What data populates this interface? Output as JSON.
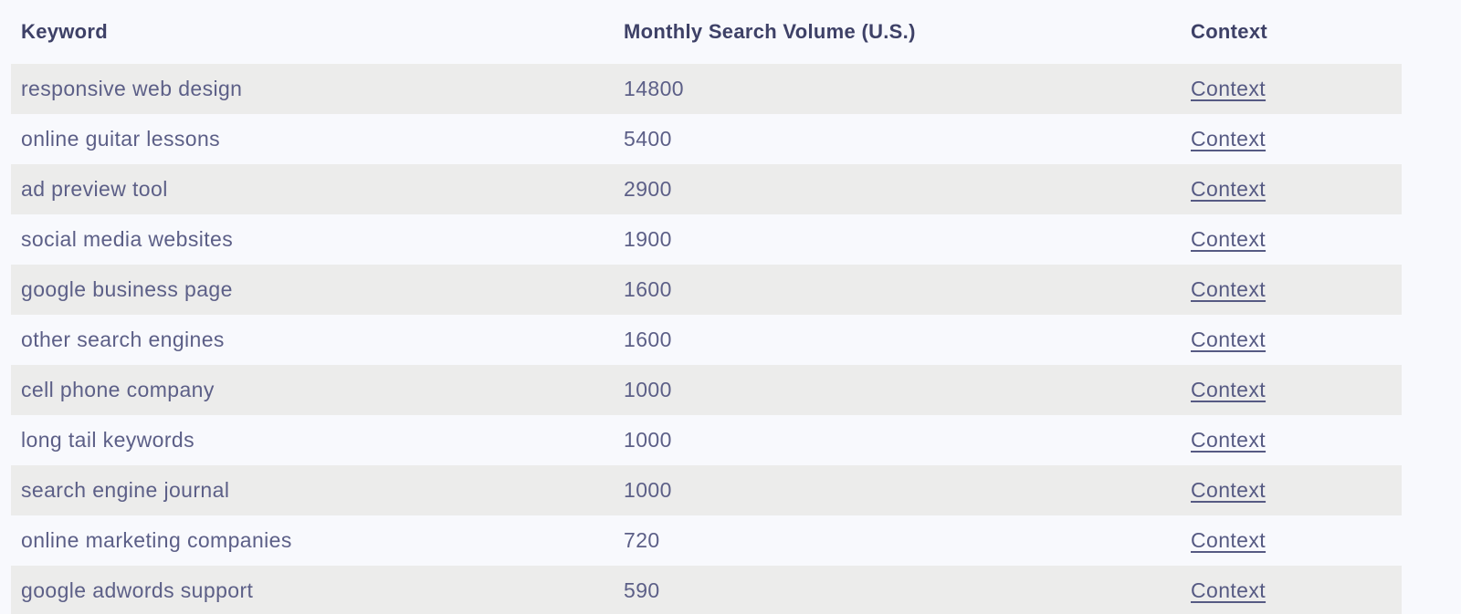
{
  "table": {
    "columns": [
      {
        "key": "keyword",
        "label": "Keyword"
      },
      {
        "key": "volume",
        "label": "Monthly Search Volume (U.S.)"
      },
      {
        "key": "context",
        "label": "Context"
      }
    ],
    "context_link_label": "Context",
    "rows": [
      {
        "keyword": "responsive web design",
        "volume": "14800"
      },
      {
        "keyword": "online guitar lessons",
        "volume": "5400"
      },
      {
        "keyword": "ad preview tool",
        "volume": "2900"
      },
      {
        "keyword": "social media websites",
        "volume": "1900"
      },
      {
        "keyword": "google business page",
        "volume": "1600"
      },
      {
        "keyword": "other search engines",
        "volume": "1600"
      },
      {
        "keyword": "cell phone company",
        "volume": "1000"
      },
      {
        "keyword": "long tail keywords",
        "volume": "1000"
      },
      {
        "keyword": "search engine journal",
        "volume": "1000"
      },
      {
        "keyword": "online marketing companies",
        "volume": "720"
      },
      {
        "keyword": "google adwords support",
        "volume": "590"
      }
    ]
  },
  "colors": {
    "page_bg": "#f8f9fd",
    "row_stripe_bg": "#ececeb",
    "header_text": "#3e4167",
    "body_text": "#5c5f87",
    "link_text": "#565a83"
  }
}
